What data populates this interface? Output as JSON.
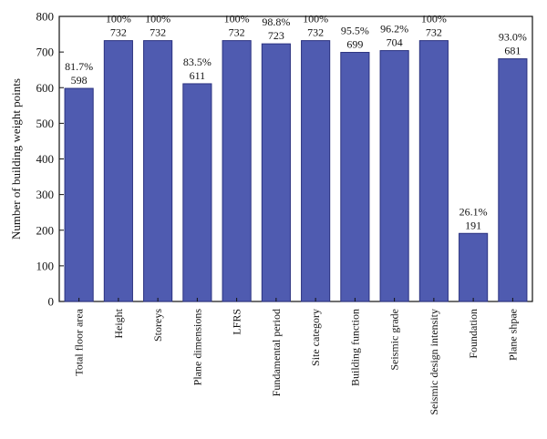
{
  "chart_data": {
    "type": "bar",
    "title": "",
    "xlabel": "",
    "ylabel": "Number of building weight points",
    "ylim": [
      0,
      800
    ],
    "yticks": [
      "0",
      "100",
      "200",
      "300",
      "400",
      "500",
      "600",
      "700",
      "800"
    ],
    "grid": false,
    "bar_color": "#4f5bb0",
    "bar_edge_color": "#2b3280",
    "categories": [
      "Total floor area",
      "Height",
      "Storeys",
      "Plane dimensions",
      "LFRS",
      "Fundamental period",
      "Site category",
      "Building function",
      "Seismic grade",
      "Seismic design intensity",
      "Foundation",
      "Plane shpae"
    ],
    "values": [
      598,
      732,
      732,
      611,
      732,
      723,
      732,
      699,
      704,
      732,
      191,
      681
    ],
    "value_labels": [
      "598",
      "732",
      "732",
      "611",
      "732",
      "723",
      "732",
      "699",
      "704",
      "732",
      "191",
      "681"
    ],
    "percent_labels": [
      "81.7%",
      "100%",
      "100%",
      "83.5%",
      "100%",
      "98.8%",
      "100%",
      "95.5%",
      "96.2%",
      "100%",
      "26.1%",
      "93.0%"
    ]
  }
}
